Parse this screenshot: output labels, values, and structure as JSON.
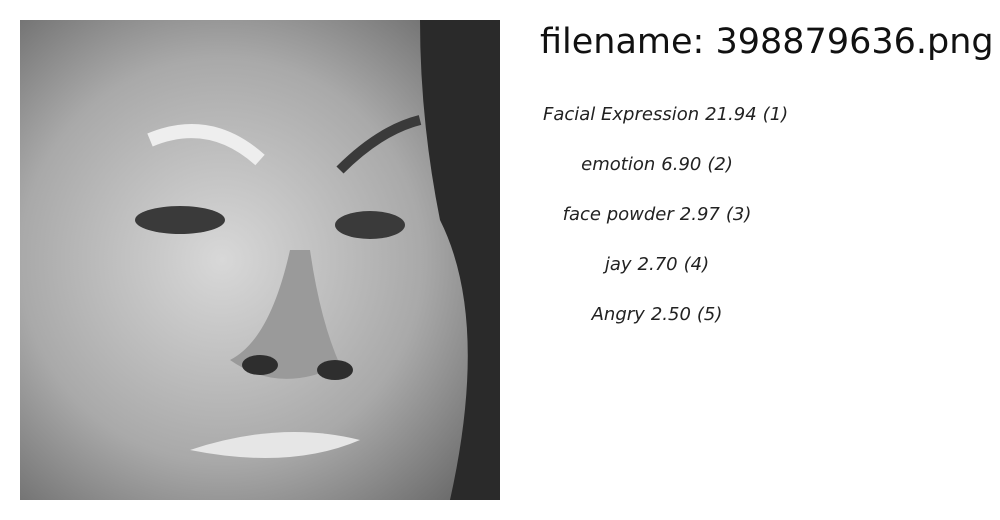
{
  "header": {
    "title": "filename: 398879636.png"
  },
  "predictions": [
    {
      "label": "Facial Expression",
      "score": "21.94",
      "rank": "(1)"
    },
    {
      "label": "emotion",
      "score": "6.90",
      "rank": "(2)"
    },
    {
      "label": "face powder",
      "score": "2.97",
      "rank": "(3)"
    },
    {
      "label": "jay",
      "score": "2.70",
      "rank": "(4)"
    },
    {
      "label": "Angry",
      "score": "2.50",
      "rank": "(5)"
    }
  ]
}
